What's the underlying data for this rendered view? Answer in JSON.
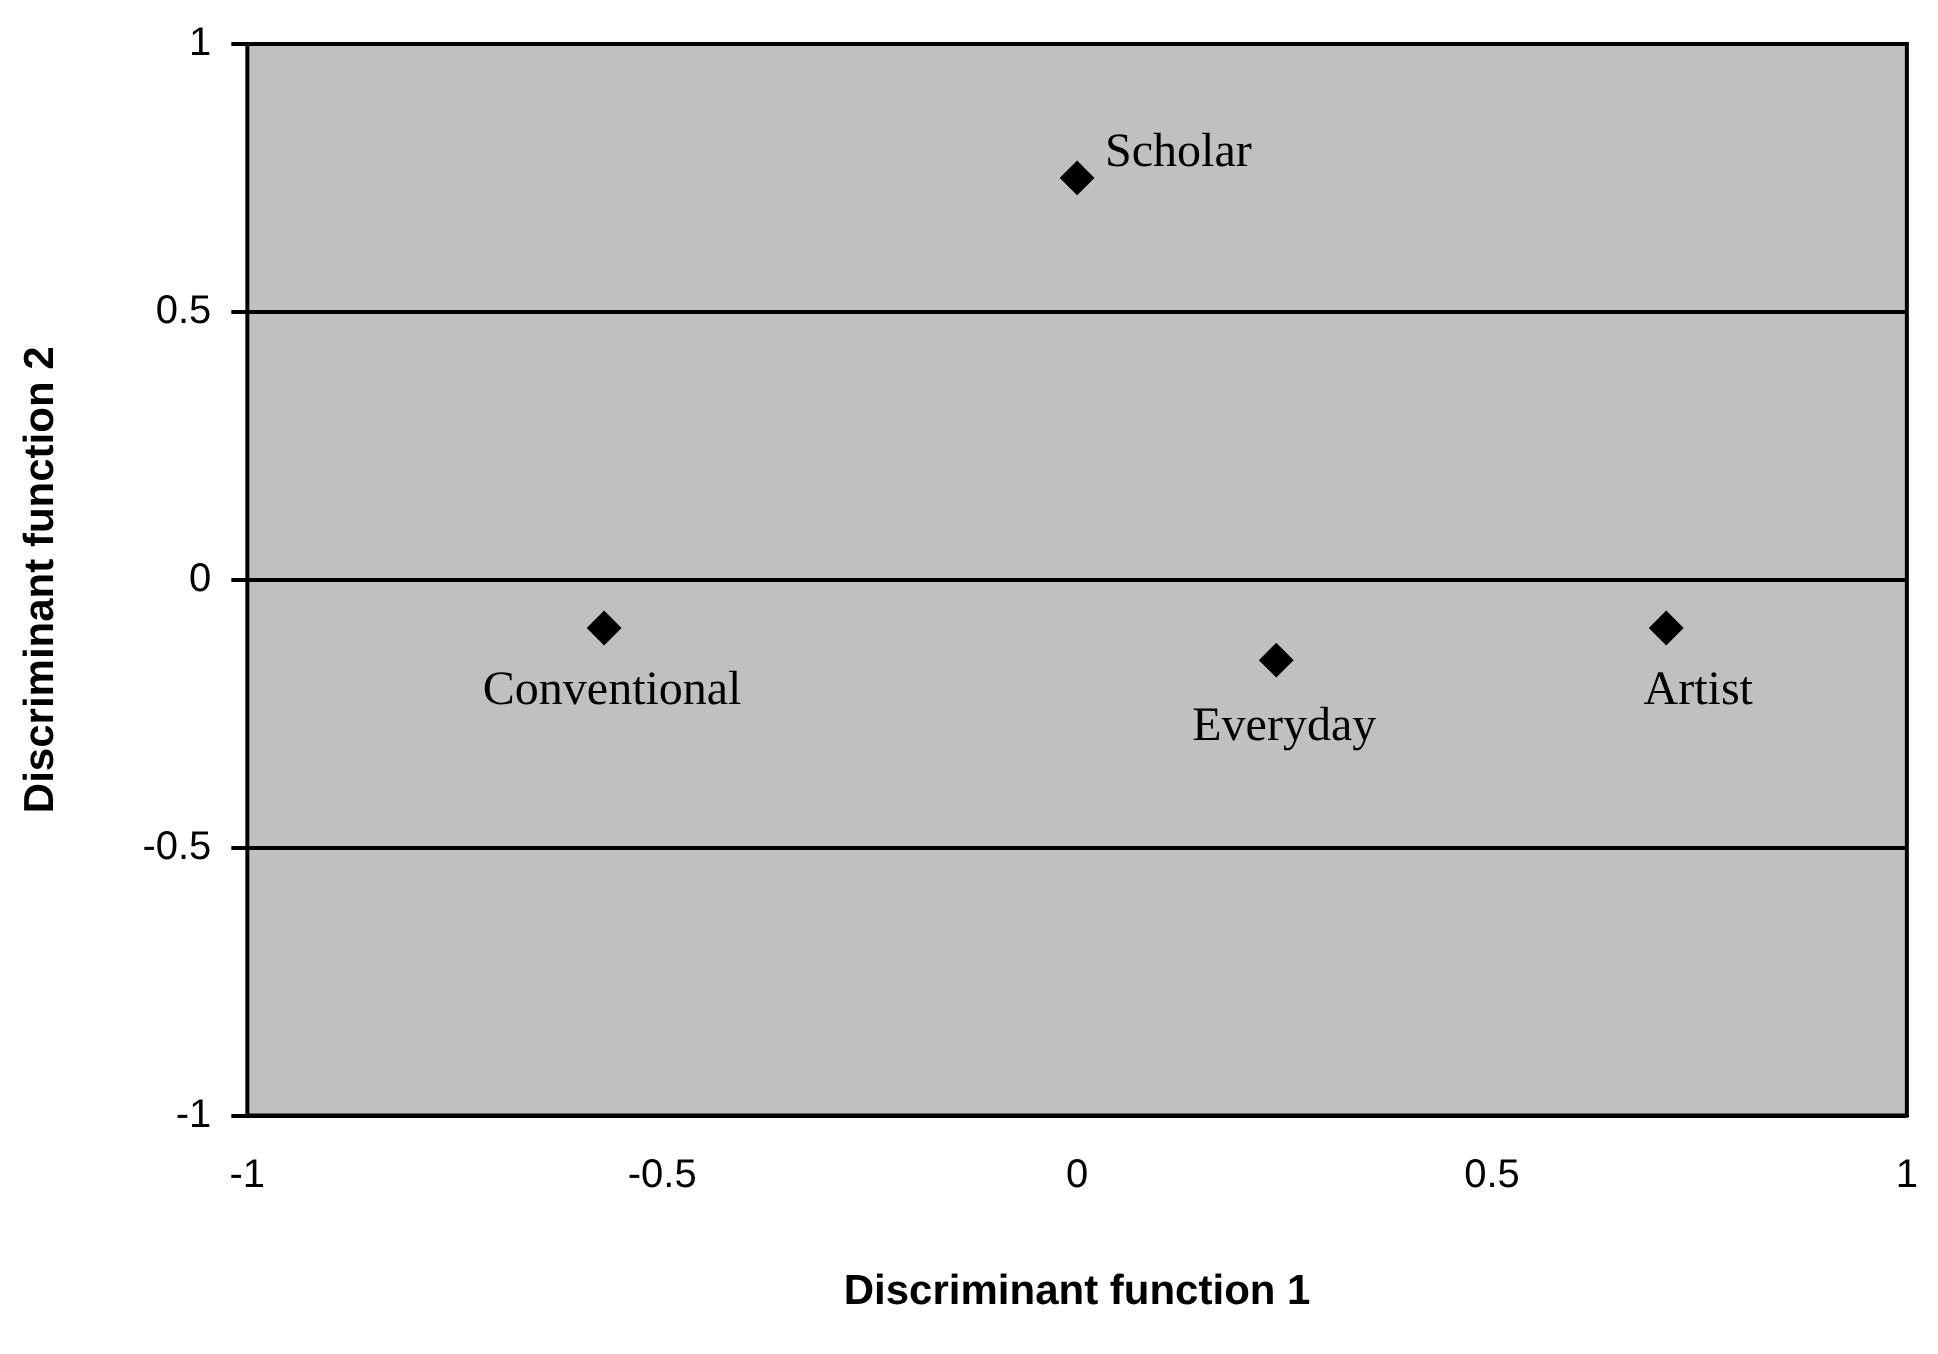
{
  "chart_data": {
    "type": "scatter",
    "xlabel": "Discriminant function 1",
    "ylabel": "Discriminant function 2",
    "x": [
      0.0,
      -0.57,
      0.24,
      0.71
    ],
    "series": [
      {
        "color": "#000000",
        "values": [
          0.75,
          -0.09,
          -0.15,
          -0.09
        ]
      }
    ],
    "xlim": [
      -1,
      1
    ],
    "xticks": [
      -1,
      -0.5,
      0,
      0.5,
      1
    ],
    "ylim": [
      -1,
      1
    ],
    "yticks": [
      -1,
      -0.5,
      0,
      0.5,
      1
    ],
    "grid": "y",
    "marker": "diamond",
    "legend": false,
    "annotations": [
      {
        "text": "Scholar",
        "x": 0.0,
        "y": 0.75
      },
      {
        "text": "Conventional",
        "x": -0.57,
        "y": -0.09
      },
      {
        "text": "Everyday",
        "x": 0.24,
        "y": -0.15
      },
      {
        "text": "Artist",
        "x": 0.71,
        "y": -0.09
      }
    ]
  }
}
